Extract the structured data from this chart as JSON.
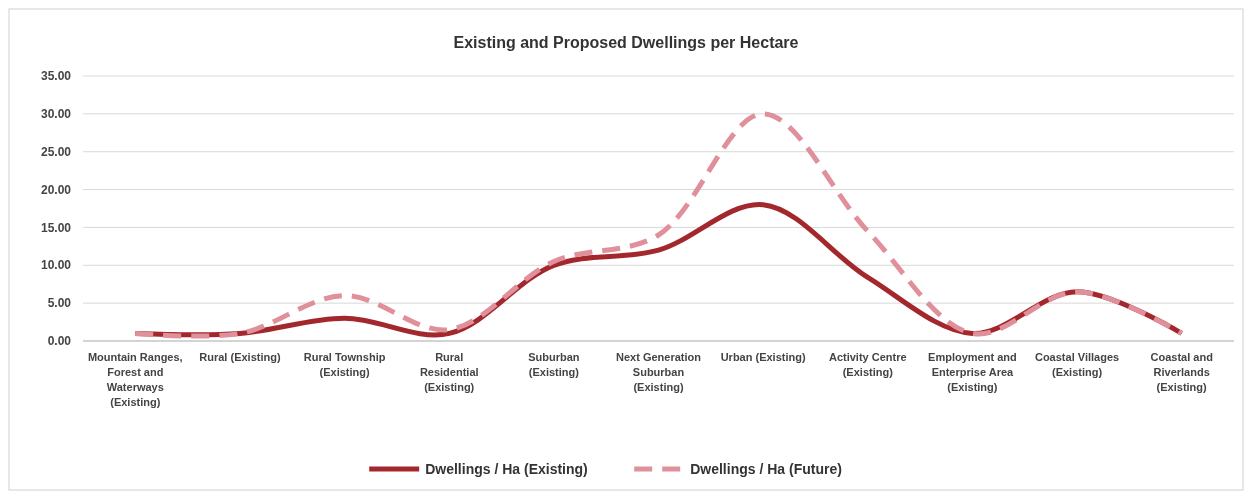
{
  "chart_data": {
    "type": "line",
    "title": "Existing and Proposed Dwellings per Hectare",
    "categories": [
      "Mountain Ranges, Forest and Waterways (Existing)",
      "Rural (Existing)",
      "Rural Township (Existing)",
      "Rural Residential (Existing)",
      "Suburban (Existing)",
      "Next Generation Suburban (Existing)",
      "Urban (Existing)",
      "Activity Centre (Existing)",
      "Employment and Enterprise Area (Existing)",
      "Coastal Villages (Existing)",
      "Coastal and Riverlands (Existing)"
    ],
    "series": [
      {
        "name": "Dwellings / Ha (Existing)",
        "color": "#a3282e",
        "line_style": "solid",
        "values": [
          1,
          1,
          3,
          1,
          10,
          12,
          18,
          8.4,
          1,
          6.5,
          1
        ]
      },
      {
        "name": "Dwellings / Ha (Future)",
        "color": "#e0909a",
        "line_style": "dashed",
        "values": [
          1,
          1,
          6,
          1.5,
          10.5,
          14,
          30,
          14.5,
          1,
          6.5,
          1
        ]
      }
    ],
    "ylim": [
      0,
      35
    ],
    "yticks": [
      {
        "value": 0,
        "label": "0.00"
      },
      {
        "value": 5,
        "label": "5.00"
      },
      {
        "value": 10,
        "label": "10.00"
      },
      {
        "value": 15,
        "label": "15.00"
      },
      {
        "value": 20,
        "label": "20.00"
      },
      {
        "value": 25,
        "label": "25.00"
      },
      {
        "value": 30,
        "label": "30.00"
      },
      {
        "value": 35,
        "label": "35.00"
      }
    ],
    "grid": "y",
    "legend": "bottom",
    "marker": "none"
  }
}
